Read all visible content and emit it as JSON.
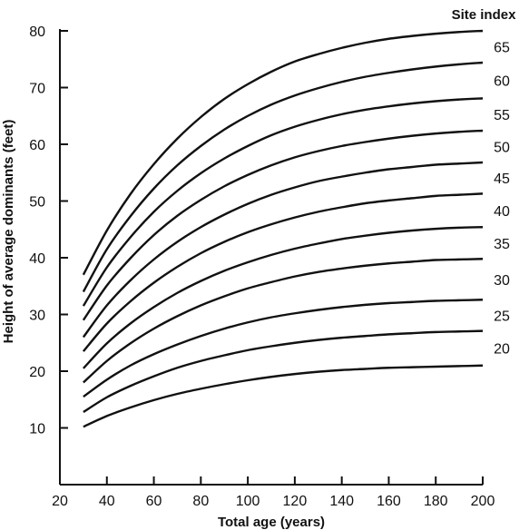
{
  "chart_data": {
    "type": "line",
    "title": "",
    "xlabel": "Total age (years)",
    "ylabel": "Height of average dominants (feet)",
    "xlim": [
      20,
      200
    ],
    "ylim": [
      0,
      80
    ],
    "x_ticks": [
      {
        "value": 20,
        "label": "20"
      },
      {
        "value": 40,
        "label": "40"
      },
      {
        "value": 60,
        "label": "60"
      },
      {
        "value": 80,
        "label": "80"
      },
      {
        "value": 100,
        "label": "100"
      },
      {
        "value": 120,
        "label": "120"
      },
      {
        "value": 140,
        "label": "140"
      },
      {
        "value": 160,
        "label": "160"
      },
      {
        "value": 180,
        "label": "180"
      },
      {
        "value": 200,
        "label": "200"
      }
    ],
    "y_ticks": [
      {
        "value": 10,
        "label": "10"
      },
      {
        "value": 20,
        "label": "20"
      },
      {
        "value": 30,
        "label": "30"
      },
      {
        "value": 40,
        "label": "40"
      },
      {
        "value": 50,
        "label": "50"
      },
      {
        "value": 60,
        "label": "60"
      },
      {
        "value": 70,
        "label": "70"
      },
      {
        "value": 80,
        "label": "80"
      }
    ],
    "legend_title": "Site index",
    "legend_placement": "right",
    "grid": false,
    "x": [
      30,
      40,
      50,
      60,
      70,
      80,
      90,
      100,
      110,
      120,
      130,
      140,
      150,
      160,
      170,
      180,
      190,
      200
    ],
    "series": [
      {
        "name": "65",
        "values": [
          37.0,
          44.8,
          51.2,
          56.5,
          61.0,
          64.8,
          68.0,
          70.6,
          72.8,
          74.6,
          75.9,
          77.0,
          77.9,
          78.6,
          79.1,
          79.5,
          79.8,
          80.0
        ]
      },
      {
        "name": "60",
        "values": [
          34.0,
          41.5,
          47.3,
          52.2,
          56.3,
          59.7,
          62.6,
          65.0,
          67.0,
          68.6,
          69.9,
          71.0,
          71.9,
          72.6,
          73.2,
          73.7,
          74.1,
          74.4
        ]
      },
      {
        "name": "55",
        "values": [
          31.5,
          38.3,
          43.6,
          48.1,
          51.8,
          54.9,
          57.5,
          59.7,
          61.6,
          63.1,
          64.3,
          65.3,
          66.1,
          66.7,
          67.2,
          67.6,
          67.9,
          68.1
        ]
      },
      {
        "name": "50",
        "values": [
          29.0,
          35.1,
          39.9,
          44.0,
          47.4,
          50.2,
          52.6,
          54.6,
          56.3,
          57.7,
          58.8,
          59.7,
          60.4,
          61.0,
          61.5,
          61.9,
          62.2,
          62.4
        ]
      },
      {
        "name": "45",
        "values": [
          26.0,
          31.6,
          36.0,
          39.7,
          42.8,
          45.4,
          47.6,
          49.5,
          51.1,
          52.4,
          53.5,
          54.3,
          55.0,
          55.6,
          56.0,
          56.4,
          56.6,
          56.8
        ]
      },
      {
        "name": "40",
        "values": [
          23.5,
          28.4,
          32.3,
          35.6,
          38.4,
          40.8,
          42.8,
          44.5,
          45.9,
          47.1,
          48.1,
          48.9,
          49.6,
          50.1,
          50.5,
          50.9,
          51.1,
          51.3
        ]
      },
      {
        "name": "35",
        "values": [
          20.5,
          24.9,
          28.4,
          31.3,
          33.8,
          35.9,
          37.7,
          39.2,
          40.5,
          41.6,
          42.5,
          43.3,
          43.9,
          44.4,
          44.8,
          45.1,
          45.3,
          45.4
        ]
      },
      {
        "name": "30",
        "values": [
          18.0,
          21.8,
          24.9,
          27.5,
          29.7,
          31.6,
          33.2,
          34.6,
          35.7,
          36.7,
          37.5,
          38.1,
          38.6,
          39.0,
          39.3,
          39.6,
          39.7,
          39.8
        ]
      },
      {
        "name": "25",
        "values": [
          15.5,
          18.5,
          21.0,
          23.0,
          24.7,
          26.2,
          27.5,
          28.6,
          29.5,
          30.2,
          30.8,
          31.3,
          31.7,
          32.0,
          32.2,
          32.4,
          32.5,
          32.6
        ]
      },
      {
        "name": "20",
        "values": [
          12.8,
          15.4,
          17.4,
          19.1,
          20.6,
          21.8,
          22.8,
          23.7,
          24.4,
          25.0,
          25.5,
          25.9,
          26.2,
          26.5,
          26.7,
          26.9,
          27.0,
          27.1
        ]
      },
      {
        "name": "",
        "values": [
          10.2,
          12.1,
          13.6,
          14.9,
          16.0,
          16.9,
          17.7,
          18.4,
          19.0,
          19.5,
          19.9,
          20.2,
          20.4,
          20.6,
          20.7,
          20.8,
          20.9,
          21.0
        ]
      }
    ]
  }
}
